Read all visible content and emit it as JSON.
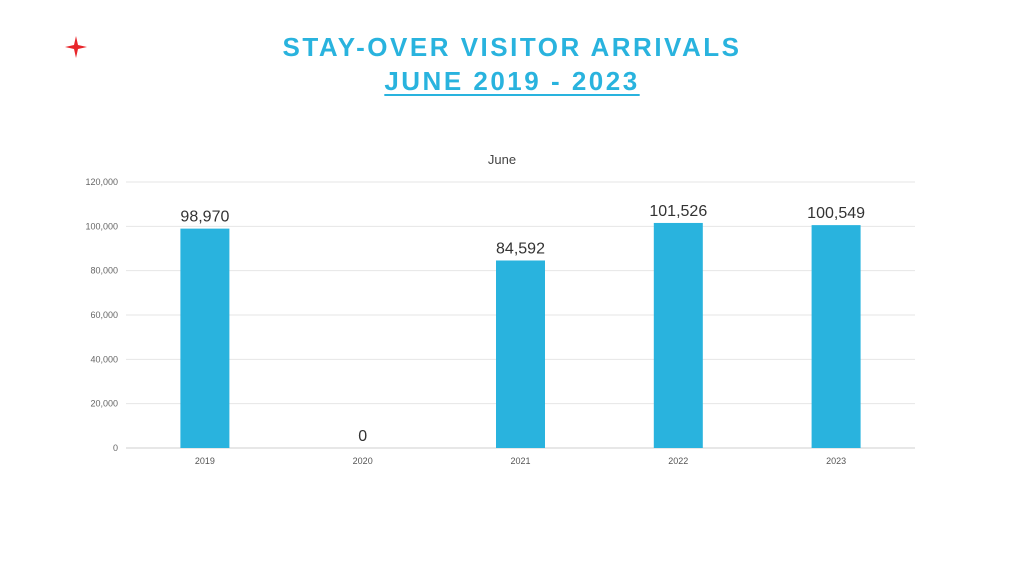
{
  "slide": {
    "title": "STAY-OVER VISITOR ARRIVALS",
    "subtitle": "JUNE 2019 - 2023",
    "logo_icon": "red-four-point-star-icon",
    "title_color": "#29b3de",
    "logo_color": "#e8262b"
  },
  "chart_data": {
    "type": "bar",
    "title": "June",
    "categories": [
      "2019",
      "2020",
      "2021",
      "2022",
      "2023"
    ],
    "values": [
      98970,
      0,
      84592,
      101526,
      100549
    ],
    "data_labels": [
      "98,970",
      "0",
      "84,592",
      "101,526",
      "100,549"
    ],
    "ylim": [
      0,
      120000
    ],
    "yticks": [
      0,
      20000,
      40000,
      60000,
      80000,
      100000,
      120000
    ],
    "ytick_labels": [
      "0",
      "20,000",
      "40,000",
      "60,000",
      "80,000",
      "100,000",
      "120,000"
    ],
    "xlabel": "",
    "ylabel": "",
    "grid": true,
    "legend": "none",
    "bar_color": "#29b3de"
  }
}
